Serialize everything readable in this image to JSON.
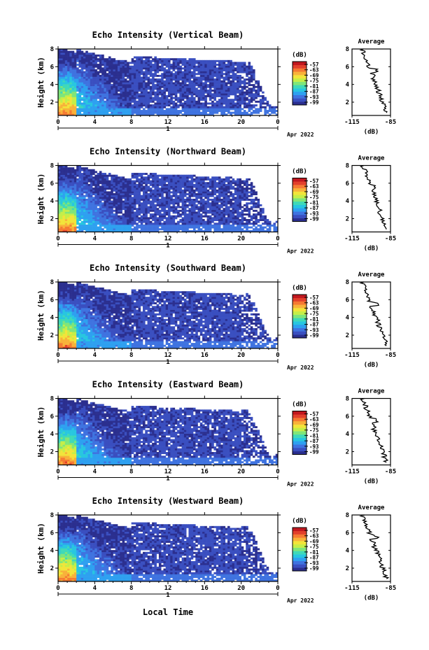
{
  "figure": {
    "x_axis_label": "Local Time",
    "date_label": "Apr 2022",
    "day_label": "1",
    "colorbar_unit": "(dB)",
    "colorbar_ticks": [
      "-57",
      "-63",
      "-69",
      "-75",
      "-81",
      "-87",
      "-93",
      "-99"
    ],
    "colormap": [
      "#2b2f8f",
      "#3a4fc0",
      "#3f73e0",
      "#2ea0f0",
      "#28c6e0",
      "#3fd9b8",
      "#7fe57a",
      "#c5ee48",
      "#f2e43a",
      "#f8b23a",
      "#f57a33",
      "#e2402c",
      "#c2181f"
    ],
    "average_title": "Average",
    "average_xlabel": "(dB)"
  },
  "chart_data": [
    {
      "type": "heatmap",
      "title": "Echo Intensity (Vertical Beam)",
      "ylabel": "Height (km)",
      "xlabel": "Local Time",
      "x_ticks": [
        "0",
        "4",
        "8",
        "12",
        "16",
        "20",
        "0"
      ],
      "y_ticks": [
        "2",
        "4",
        "6",
        "8"
      ],
      "xlim": [
        0,
        24
      ],
      "ylim": [
        0.5,
        8
      ],
      "colorbar": {
        "unit": "(dB)",
        "ticks": [
          -57,
          -63,
          -69,
          -75,
          -81,
          -87,
          -93,
          -99
        ]
      },
      "average": {
        "title": "Average",
        "xlabel": "(dB)",
        "x_ticks": [
          "-115",
          "-85"
        ],
        "xlim": [
          -115,
          -85
        ],
        "y_ticks": [
          "2",
          "4",
          "6",
          "8"
        ]
      }
    },
    {
      "type": "heatmap",
      "title": "Echo Intensity (Northward Beam)",
      "ylabel": "Height (km)",
      "xlabel": "Local Time",
      "x_ticks": [
        "0",
        "4",
        "8",
        "12",
        "16",
        "20",
        "0"
      ],
      "y_ticks": [
        "2",
        "4",
        "6",
        "8"
      ],
      "xlim": [
        0,
        24
      ],
      "ylim": [
        0.5,
        8
      ],
      "colorbar": {
        "unit": "(dB)",
        "ticks": [
          -57,
          -63,
          -69,
          -75,
          -81,
          -87,
          -93,
          -99
        ]
      },
      "average": {
        "title": "Average",
        "xlabel": "(dB)",
        "x_ticks": [
          "-115",
          "-85"
        ],
        "xlim": [
          -115,
          -85
        ],
        "y_ticks": [
          "2",
          "4",
          "6",
          "8"
        ]
      }
    },
    {
      "type": "heatmap",
      "title": "Echo Intensity (Southward Beam)",
      "ylabel": "Height (km)",
      "xlabel": "Local Time",
      "x_ticks": [
        "0",
        "4",
        "8",
        "12",
        "16",
        "20",
        "0"
      ],
      "y_ticks": [
        "2",
        "4",
        "6",
        "8"
      ],
      "xlim": [
        0,
        24
      ],
      "ylim": [
        0.5,
        8
      ],
      "colorbar": {
        "unit": "(dB)",
        "ticks": [
          -57,
          -63,
          -69,
          -75,
          -81,
          -87,
          -93,
          -99
        ]
      },
      "average": {
        "title": "Average",
        "xlabel": "(dB)",
        "x_ticks": [
          "-115",
          "-85"
        ],
        "xlim": [
          -115,
          -85
        ],
        "y_ticks": [
          "2",
          "4",
          "6",
          "8"
        ]
      }
    },
    {
      "type": "heatmap",
      "title": "Echo Intensity (Eastward Beam)",
      "ylabel": "Height (km)",
      "xlabel": "Local Time",
      "x_ticks": [
        "0",
        "4",
        "8",
        "12",
        "16",
        "20",
        "0"
      ],
      "y_ticks": [
        "2",
        "4",
        "6",
        "8"
      ],
      "xlim": [
        0,
        24
      ],
      "ylim": [
        0.5,
        8
      ],
      "colorbar": {
        "unit": "(dB)",
        "ticks": [
          -57,
          -63,
          -69,
          -75,
          -81,
          -87,
          -93,
          -99
        ]
      },
      "average": {
        "title": "Average",
        "xlabel": "(dB)",
        "x_ticks": [
          "-115",
          "-85"
        ],
        "xlim": [
          -115,
          -85
        ],
        "y_ticks": [
          "2",
          "4",
          "6",
          "8"
        ]
      }
    },
    {
      "type": "heatmap",
      "title": "Echo Intensity (Westward Beam)",
      "ylabel": "Height (km)",
      "xlabel": "Local Time",
      "x_ticks": [
        "0",
        "4",
        "8",
        "12",
        "16",
        "20",
        "0"
      ],
      "y_ticks": [
        "2",
        "4",
        "6",
        "8"
      ],
      "xlim": [
        0,
        24
      ],
      "ylim": [
        0.5,
        8
      ],
      "colorbar": {
        "unit": "(dB)",
        "ticks": [
          -57,
          -63,
          -69,
          -75,
          -81,
          -87,
          -93,
          -99
        ]
      },
      "average": {
        "title": "Average",
        "xlabel": "(dB)",
        "x_ticks": [
          "-115",
          "-85"
        ],
        "xlim": [
          -115,
          -85
        ],
        "y_ticks": [
          "2",
          "4",
          "6",
          "8"
        ]
      }
    }
  ]
}
